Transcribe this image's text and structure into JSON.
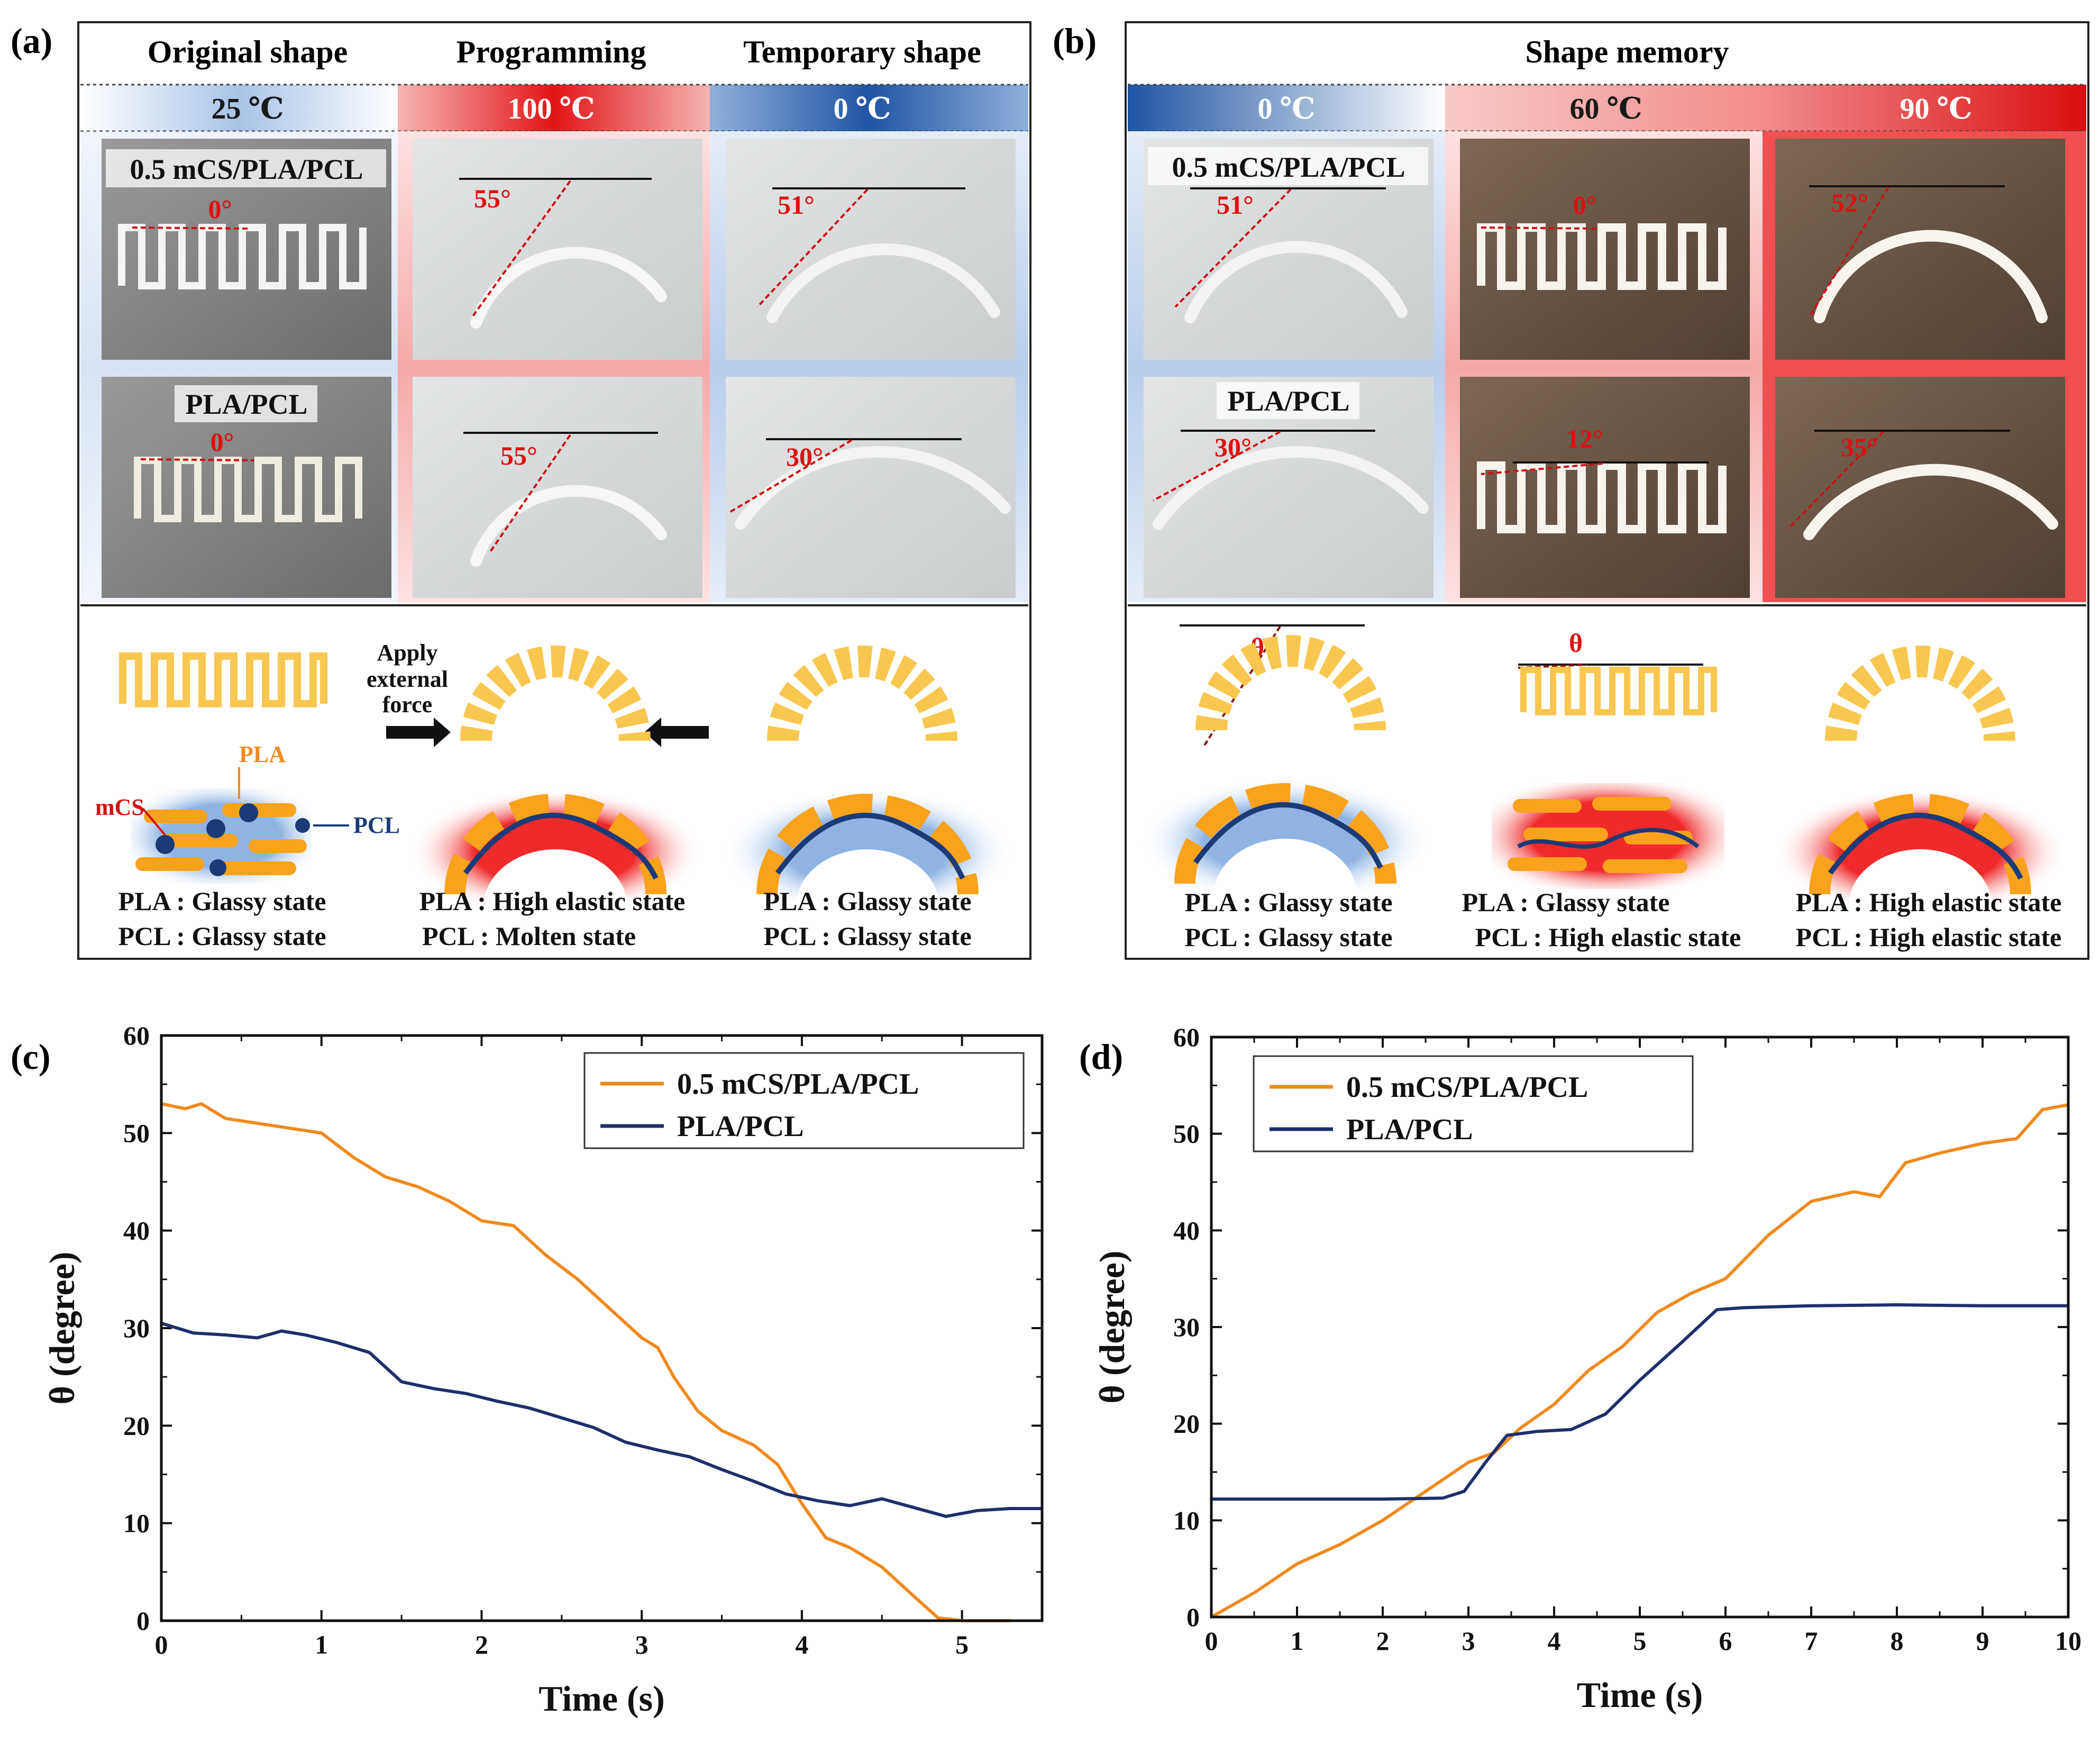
{
  "panels": {
    "a": {
      "letter": "(a)",
      "headers": [
        "Original shape",
        "Programming",
        "Temporary shape"
      ],
      "temps": [
        "25 ℃",
        "100 ℃",
        "0 ℃"
      ],
      "rows": [
        {
          "label": "0.5 mCS/PLA/PCL",
          "angles": [
            "0°",
            "55°",
            "51°"
          ]
        },
        {
          "label": "PLA/PCL",
          "angles": [
            "0°",
            "55°",
            "30°"
          ]
        }
      ],
      "diagram": {
        "force_label": [
          "Apply",
          "external",
          "force"
        ],
        "component_labels": {
          "pla": "PLA",
          "mcs": "mCS",
          "pcl": "PCL"
        },
        "states": [
          [
            "PLA : Glassy state",
            "PCL : Glassy state"
          ],
          [
            "PLA : High elastic state",
            "PCL : Molten state"
          ],
          [
            "PLA : Glassy state",
            "PCL : Glassy state"
          ]
        ]
      }
    },
    "b": {
      "letter": "(b)",
      "header": "Shape memory",
      "temps": [
        "0 ℃",
        "60 ℃",
        "90 ℃"
      ],
      "rows": [
        {
          "label": "0.5 mCS/PLA/PCL",
          "angles": [
            "51°",
            "0°",
            "52°"
          ]
        },
        {
          "label": "PLA/PCL",
          "angles": [
            "30°",
            "12°",
            "35°"
          ]
        }
      ],
      "diagram": {
        "theta_label": "θ",
        "states": [
          [
            "PLA : Glassy state",
            "PCL : Glassy state"
          ],
          [
            "PLA : Glassy state",
            "PCL : High elastic state"
          ],
          [
            "PLA : High elastic state",
            "PCL : High elastic state"
          ]
        ]
      }
    }
  },
  "colors": {
    "orange_series": "#f08a1c",
    "navy_series": "#1e2f6b",
    "hot": "#e01818",
    "cold": "#1f5aa6",
    "filament": "#f9c74f",
    "photo_gray": "#8c8c8c",
    "photo_light": "#d8dadb",
    "photo_brown": "#6e5a4a"
  },
  "chart_data": [
    {
      "panel": "(c)",
      "type": "line",
      "xlabel": "Time (s)",
      "ylabel": "θ (degree)",
      "xlim": [
        0,
        5.5
      ],
      "ylim": [
        0,
        60
      ],
      "xticks": [
        0,
        1,
        2,
        3,
        4,
        5
      ],
      "yticks": [
        0,
        10,
        20,
        30,
        40,
        50,
        60
      ],
      "legend_position": "top-right",
      "series": [
        {
          "name": "0.5 mCS/PLA/PCL",
          "color": "#f08a1c",
          "x": [
            0,
            0.15,
            0.25,
            0.4,
            0.6,
            0.8,
            1.0,
            1.2,
            1.4,
            1.6,
            1.8,
            2.0,
            2.2,
            2.4,
            2.6,
            2.8,
            3.0,
            3.1,
            3.2,
            3.35,
            3.5,
            3.7,
            3.85,
            4.0,
            4.15,
            4.3,
            4.5,
            4.7,
            4.85,
            5.0,
            5.3
          ],
          "y": [
            53,
            52.5,
            53,
            51.5,
            51,
            50.5,
            50,
            47.5,
            45.5,
            44.5,
            43,
            41,
            40.5,
            37.5,
            35,
            32,
            29,
            28,
            25,
            21.5,
            19.5,
            18,
            16,
            12,
            8.5,
            7.5,
            5.5,
            2.5,
            0.3,
            0,
            0
          ]
        },
        {
          "name": "PLA/PCL",
          "color": "#1e2f6b",
          "x": [
            0,
            0.2,
            0.4,
            0.6,
            0.75,
            0.9,
            1.1,
            1.3,
            1.5,
            1.7,
            1.9,
            2.1,
            2.3,
            2.5,
            2.7,
            2.9,
            3.1,
            3.3,
            3.5,
            3.7,
            3.9,
            4.1,
            4.3,
            4.5,
            4.7,
            4.9,
            5.1,
            5.3,
            5.5
          ],
          "y": [
            30.5,
            29.5,
            29.3,
            29,
            29.7,
            29.3,
            28.5,
            27.5,
            24.5,
            23.8,
            23.3,
            22.5,
            21.8,
            20.8,
            19.8,
            18.3,
            17.5,
            16.8,
            15.5,
            14.3,
            13,
            12.3,
            11.8,
            12.5,
            11.6,
            10.7,
            11.3,
            11.5,
            11.5
          ]
        }
      ]
    },
    {
      "panel": "(d)",
      "type": "line",
      "xlabel": "Time (s)",
      "ylabel": "θ (degree)",
      "xlim": [
        0,
        10
      ],
      "ylim": [
        0,
        60
      ],
      "xticks": [
        0,
        1,
        2,
        3,
        4,
        5,
        6,
        7,
        8,
        9,
        10
      ],
      "yticks": [
        0,
        10,
        20,
        30,
        40,
        50,
        60
      ],
      "legend_position": "top-left",
      "series": [
        {
          "name": "0.5 mCS/PLA/PCL",
          "color": "#f08a1c",
          "x": [
            0,
            0.5,
            1.0,
            1.5,
            2.0,
            2.5,
            3.0,
            3.3,
            3.6,
            4.0,
            4.4,
            4.8,
            5.2,
            5.6,
            6.0,
            6.5,
            7.0,
            7.5,
            7.8,
            8.1,
            8.5,
            9.0,
            9.4,
            9.7,
            10.0
          ],
          "y": [
            0,
            2.5,
            5.5,
            7.5,
            10,
            13,
            16,
            17,
            19.5,
            22,
            25.5,
            28,
            31.5,
            33.5,
            35,
            39.5,
            43,
            44,
            43.5,
            47,
            48,
            49,
            49.5,
            52.5,
            53
          ]
        },
        {
          "name": "PLA/PCL",
          "color": "#1e2f6b",
          "x": [
            0,
            1.0,
            2.0,
            2.7,
            2.95,
            3.2,
            3.45,
            3.8,
            4.2,
            4.6,
            5.0,
            5.5,
            5.9,
            6.2,
            7.0,
            8.0,
            9.0,
            10.0
          ],
          "y": [
            12.2,
            12.2,
            12.2,
            12.3,
            13,
            16,
            18.8,
            19.2,
            19.4,
            21,
            24.5,
            28.5,
            31.8,
            32,
            32.2,
            32.3,
            32.2,
            32.2
          ]
        }
      ]
    }
  ]
}
